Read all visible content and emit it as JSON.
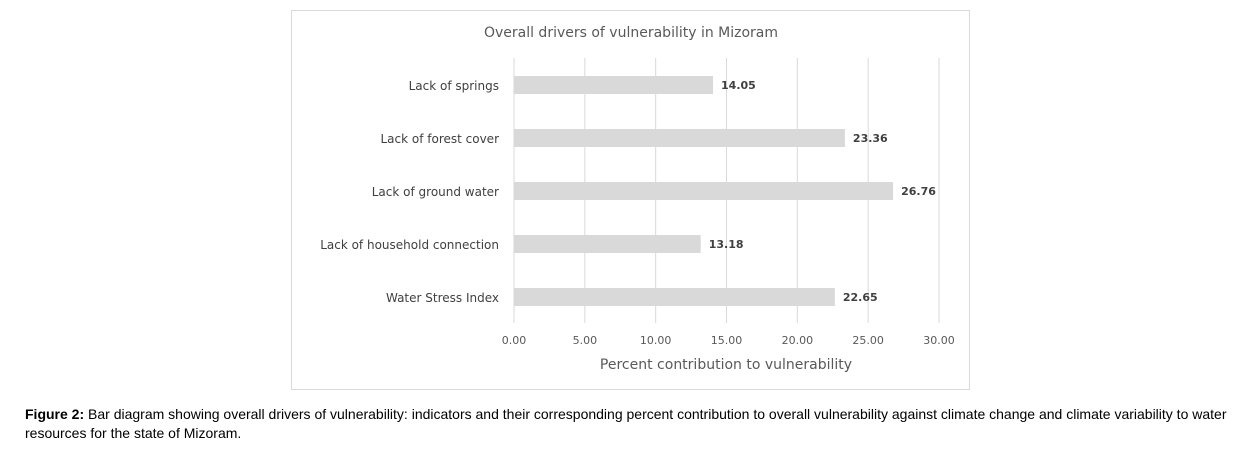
{
  "chart_data": {
    "type": "bar",
    "orientation": "horizontal",
    "title": "Overall drivers of vulnerability in Mizoram",
    "xlabel": "Percent contribution to vulnerability",
    "ylabel": "",
    "categories": [
      "Lack of springs",
      "Lack of forest cover",
      "Lack of ground water",
      "Lack of  household connection",
      "Water Stress Index"
    ],
    "values": [
      14.05,
      23.36,
      26.76,
      13.18,
      22.65
    ],
    "value_labels": [
      "14.05",
      "23.36",
      "26.76",
      "13.18",
      "22.65"
    ],
    "xlim": [
      0,
      30
    ],
    "xticks": [
      0,
      5,
      10,
      15,
      20,
      25,
      30
    ],
    "xtick_labels": [
      "0.00",
      "5.00",
      "10.00",
      "15.00",
      "20.00",
      "25.00",
      "30.00"
    ],
    "grid": "vertical",
    "legend": "none",
    "bar_color": "#d9d9d9"
  },
  "caption": {
    "label": "Figure 2:",
    "text": " Bar diagram showing overall drivers of vulnerability: indicators and their corresponding percent contribution to overall vulnerability against climate change and climate variability to water resources for the state of Mizoram."
  }
}
